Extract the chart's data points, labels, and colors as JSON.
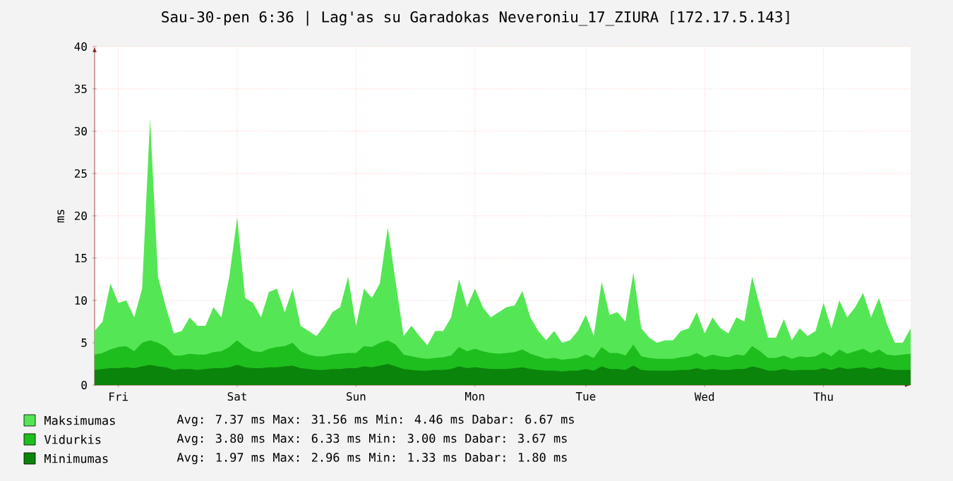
{
  "chart_data": {
    "type": "area",
    "title": "Sau-30-pen 6:36 | Lag'as su Garadokas Neveroniu_17_ZIURA [172.17.5.143]",
    "ylabel": "ms",
    "categories": [
      null,
      null,
      null,
      "Fri",
      null,
      null,
      null,
      null,
      null,
      null,
      null,
      null,
      null,
      null,
      null,
      null,
      null,
      null,
      "Sat",
      null,
      null,
      null,
      null,
      null,
      null,
      null,
      null,
      null,
      null,
      null,
      null,
      null,
      null,
      "Sun",
      null,
      null,
      null,
      null,
      null,
      null,
      null,
      null,
      null,
      null,
      null,
      null,
      null,
      null,
      "Mon",
      null,
      null,
      null,
      null,
      null,
      null,
      null,
      null,
      null,
      null,
      null,
      null,
      null,
      "Tue",
      null,
      null,
      null,
      null,
      null,
      null,
      null,
      null,
      null,
      null,
      null,
      null,
      null,
      null,
      "Wed",
      null,
      null,
      null,
      null,
      null,
      null,
      null,
      null,
      null,
      null,
      null,
      null,
      null,
      null,
      "Thu",
      null,
      null,
      null,
      null,
      null,
      null,
      null,
      null,
      null,
      null,
      null
    ],
    "series": [
      {
        "name": "Maksimumas",
        "color": "#55e655",
        "values": [
          6.4,
          7.5,
          12,
          9.7,
          10,
          8,
          11.4,
          31.5,
          12.8,
          9.2,
          6.1,
          6.4,
          8,
          7,
          7,
          9.2,
          8,
          12.8,
          19.8,
          10.3,
          9.7,
          8,
          11,
          11.4,
          8.6,
          11.4,
          7,
          6.4,
          5.8,
          7,
          8.6,
          9.2,
          12.8,
          7,
          11.4,
          10.3,
          12,
          18.6,
          12.2,
          5.8,
          7,
          5.8,
          4.7,
          6.4,
          6.4,
          8,
          12.5,
          9.2,
          11.4,
          9.2,
          8,
          8.6,
          9.2,
          9.4,
          11.1,
          8,
          6.4,
          5.3,
          6.4,
          5,
          5.3,
          6.4,
          8.3,
          5.8,
          12.2,
          8.3,
          8.6,
          7.5,
          13.3,
          6.7,
          5.6,
          5,
          5.3,
          5.3,
          6.4,
          6.7,
          8.6,
          6.1,
          8,
          6.7,
          6.1,
          8,
          7.5,
          12.8,
          9.2,
          5.6,
          5.6,
          7.8,
          5.3,
          6.7,
          5.8,
          6.4,
          9.7,
          6.7,
          10,
          8,
          9.2,
          10.9,
          8,
          10.3,
          7.2,
          5,
          5,
          6.7
        ]
      },
      {
        "name": "Vidurkis",
        "color": "#1ebe1e",
        "values": [
          3.6,
          3.8,
          4.2,
          4.5,
          4.6,
          4.0,
          5.0,
          5.3,
          5.0,
          4.5,
          3.5,
          3.5,
          3.7,
          3.6,
          3.6,
          3.9,
          4.0,
          4.5,
          5.3,
          4.5,
          4.0,
          3.9,
          4.3,
          4.5,
          4.6,
          5.0,
          4.0,
          3.6,
          3.4,
          3.4,
          3.6,
          3.7,
          3.8,
          3.8,
          4.6,
          4.5,
          5.0,
          5.3,
          4.8,
          3.6,
          3.4,
          3.2,
          3.1,
          3.2,
          3.3,
          3.5,
          4.5,
          4.0,
          4.3,
          4.0,
          3.8,
          3.7,
          3.8,
          3.9,
          4.2,
          3.7,
          3.4,
          3.1,
          3.2,
          3.0,
          3.1,
          3.2,
          3.6,
          3.2,
          4.5,
          3.8,
          3.8,
          3.5,
          4.8,
          3.4,
          3.2,
          3.1,
          3.1,
          3.1,
          3.3,
          3.4,
          3.8,
          3.3,
          3.6,
          3.4,
          3.3,
          3.6,
          3.5,
          4.6,
          4.0,
          3.2,
          3.2,
          3.5,
          3.1,
          3.4,
          3.3,
          3.4,
          3.9,
          3.4,
          4.2,
          3.7,
          4.0,
          4.3,
          3.8,
          4.2,
          3.6,
          3.5,
          3.6,
          3.7
        ]
      },
      {
        "name": "Minimumas",
        "color": "#0b840b",
        "values": [
          1.8,
          1.9,
          2.0,
          2.0,
          2.1,
          2.0,
          2.2,
          2.4,
          2.2,
          2.1,
          1.8,
          1.9,
          1.9,
          1.8,
          1.9,
          2.0,
          2.0,
          2.1,
          2.4,
          2.1,
          2.0,
          2.0,
          2.1,
          2.1,
          2.2,
          2.3,
          2.0,
          1.9,
          1.8,
          1.8,
          1.9,
          1.9,
          2.0,
          2.0,
          2.2,
          2.1,
          2.3,
          2.5,
          2.2,
          1.9,
          1.8,
          1.7,
          1.7,
          1.8,
          1.8,
          1.9,
          2.2,
          2.0,
          2.1,
          2.0,
          1.9,
          1.9,
          1.9,
          2.0,
          2.1,
          1.9,
          1.8,
          1.7,
          1.7,
          1.6,
          1.7,
          1.7,
          1.9,
          1.7,
          2.2,
          1.9,
          1.9,
          1.8,
          2.3,
          1.8,
          1.7,
          1.7,
          1.7,
          1.7,
          1.8,
          1.8,
          2.0,
          1.8,
          1.9,
          1.8,
          1.8,
          1.9,
          1.9,
          2.2,
          2.0,
          1.7,
          1.7,
          1.9,
          1.7,
          1.8,
          1.8,
          1.8,
          2.0,
          1.8,
          2.1,
          1.9,
          2.0,
          2.1,
          1.9,
          2.1,
          1.9,
          1.8,
          1.8,
          1.8
        ]
      }
    ],
    "annotations": [
      "Avg:   7.37 ms    Max:  31.56 ms    Min:   4.46 ms    Dabar:   6.67 ms",
      "Avg:   3.80 ms    Max:   6.33 ms    Min:   3.00 ms    Dabar:   3.67 ms",
      "Avg:   1.97 ms    Max:   2.96 ms    Min:   1.33 ms    Dabar:   1.80 ms"
    ],
    "ylim": [
      0,
      40
    ],
    "yticks": [
      0,
      5,
      10,
      15,
      20,
      25,
      30,
      35,
      40
    ],
    "grid": true,
    "legend": "bottom"
  }
}
